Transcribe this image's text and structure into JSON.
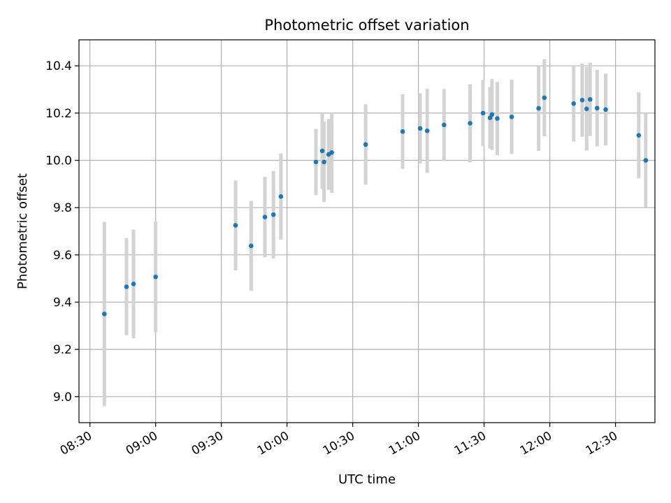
{
  "chart_data": {
    "type": "scatter",
    "title": "Photometric offset variation",
    "xlabel": "UTC time",
    "ylabel": "Photometric offset",
    "x_unit": "minutes since 00:00 UTC",
    "xlim": [
      505,
      768
    ],
    "ylim": [
      8.89,
      10.51
    ],
    "grid": true,
    "x_ticks": [
      {
        "value": 510,
        "label": "08:30"
      },
      {
        "value": 540,
        "label": "09:00"
      },
      {
        "value": 570,
        "label": "09:30"
      },
      {
        "value": 600,
        "label": "10:00"
      },
      {
        "value": 630,
        "label": "10:30"
      },
      {
        "value": 660,
        "label": "11:00"
      },
      {
        "value": 690,
        "label": "11:30"
      },
      {
        "value": 720,
        "label": "12:00"
      },
      {
        "value": 750,
        "label": "12:30"
      }
    ],
    "y_ticks": [
      {
        "value": 9.0,
        "label": "9.0"
      },
      {
        "value": 9.2,
        "label": "9.2"
      },
      {
        "value": 9.4,
        "label": "9.4"
      },
      {
        "value": 9.6,
        "label": "9.6"
      },
      {
        "value": 9.8,
        "label": "9.8"
      },
      {
        "value": 10.0,
        "label": "10.0"
      },
      {
        "value": 10.2,
        "label": "10.2"
      },
      {
        "value": 10.4,
        "label": "10.4"
      }
    ],
    "colors": {
      "points": "#1f77b4",
      "errorbars": "#d3d3d3",
      "grid": "#b0b0b0"
    },
    "series": [
      {
        "name": "offset",
        "points": [
          {
            "x": 516.6,
            "y": 9.35,
            "yerr": 0.39
          },
          {
            "x": 526.7,
            "y": 9.465,
            "yerr": 0.205
          },
          {
            "x": 529.9,
            "y": 9.477,
            "yerr": 0.23
          },
          {
            "x": 540.0,
            "y": 9.507,
            "yerr": 0.235
          },
          {
            "x": 576.5,
            "y": 9.725,
            "yerr": 0.19
          },
          {
            "x": 583.6,
            "y": 9.638,
            "yerr": 0.19
          },
          {
            "x": 589.9,
            "y": 9.76,
            "yerr": 0.17
          },
          {
            "x": 593.8,
            "y": 9.77,
            "yerr": 0.185
          },
          {
            "x": 597.2,
            "y": 9.847,
            "yerr": 0.183
          },
          {
            "x": 613.2,
            "y": 9.993,
            "yerr": 0.14
          },
          {
            "x": 616.1,
            "y": 10.04,
            "yerr": 0.16
          },
          {
            "x": 616.9,
            "y": 9.993,
            "yerr": 0.17
          },
          {
            "x": 619.0,
            "y": 10.025,
            "yerr": 0.15
          },
          {
            "x": 620.4,
            "y": 10.033,
            "yerr": 0.17
          },
          {
            "x": 635.9,
            "y": 10.067,
            "yerr": 0.17
          },
          {
            "x": 652.8,
            "y": 10.122,
            "yerr": 0.158
          },
          {
            "x": 660.8,
            "y": 10.135,
            "yerr": 0.148
          },
          {
            "x": 664.0,
            "y": 10.125,
            "yerr": 0.178
          },
          {
            "x": 671.7,
            "y": 10.15,
            "yerr": 0.152
          },
          {
            "x": 683.6,
            "y": 10.157,
            "yerr": 0.165
          },
          {
            "x": 689.5,
            "y": 10.2,
            "yerr": 0.14
          },
          {
            "x": 692.7,
            "y": 10.18,
            "yerr": 0.13
          },
          {
            "x": 693.6,
            "y": 10.194,
            "yerr": 0.15
          },
          {
            "x": 696.0,
            "y": 10.177,
            "yerr": 0.155
          },
          {
            "x": 702.6,
            "y": 10.184,
            "yerr": 0.157
          },
          {
            "x": 714.9,
            "y": 10.22,
            "yerr": 0.18
          },
          {
            "x": 717.5,
            "y": 10.265,
            "yerr": 0.163
          },
          {
            "x": 730.9,
            "y": 10.24,
            "yerr": 0.16
          },
          {
            "x": 734.8,
            "y": 10.255,
            "yerr": 0.155
          },
          {
            "x": 736.8,
            "y": 10.218,
            "yerr": 0.177
          },
          {
            "x": 738.4,
            "y": 10.258,
            "yerr": 0.155
          },
          {
            "x": 741.6,
            "y": 10.221,
            "yerr": 0.162
          },
          {
            "x": 745.5,
            "y": 10.215,
            "yerr": 0.152
          },
          {
            "x": 760.6,
            "y": 10.106,
            "yerr": 0.182
          },
          {
            "x": 763.8,
            "y": 10.0,
            "yerr": 0.2
          }
        ]
      }
    ]
  }
}
